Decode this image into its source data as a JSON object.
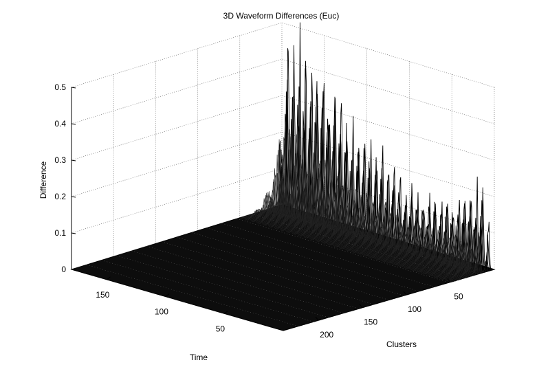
{
  "chart_data": {
    "type": "surface3d",
    "title": "3D Waveform Differences (Euc)",
    "xlabel": "Clusters",
    "ylabel": "Time",
    "zlabel": "Difference",
    "x_ticks": [
      "50",
      "100",
      "150",
      "200"
    ],
    "y_ticks": [
      "50",
      "100",
      "150"
    ],
    "z_ticks": [
      "0",
      "0.1",
      "0.2",
      "0.3",
      "0.4",
      "0.5"
    ],
    "xlim": [
      0,
      240
    ],
    "ylim": [
      0,
      180
    ],
    "zlim": [
      0,
      0.5
    ],
    "grid": true,
    "peaks_approx": [
      {
        "cluster": 220,
        "difference": 0.55
      },
      {
        "cluster": 200,
        "difference": 0.5
      },
      {
        "cluster": 180,
        "difference": 0.45
      },
      {
        "cluster": 160,
        "difference": 0.36
      },
      {
        "cluster": 140,
        "difference": 0.3
      },
      {
        "cluster": 120,
        "difference": 0.25
      },
      {
        "cluster": 100,
        "difference": 0.2
      },
      {
        "cluster": 80,
        "difference": 0.18
      },
      {
        "cluster": 60,
        "difference": 0.17
      },
      {
        "cluster": 40,
        "difference": 0.18
      },
      {
        "cluster": 20,
        "difference": 0.26
      }
    ]
  }
}
